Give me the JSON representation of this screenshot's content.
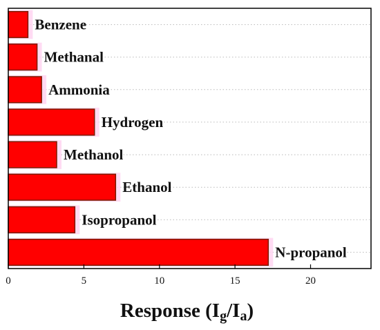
{
  "chart_data": {
    "type": "bar",
    "orientation": "horizontal",
    "categories": [
      "Benzene",
      "Methanal",
      "Ammonia",
      "Hydrogen",
      "Methanol",
      "Ethanol",
      "Isopropanol",
      "N-propanol"
    ],
    "values": [
      1.3,
      1.9,
      2.2,
      5.7,
      3.2,
      7.1,
      4.4,
      17.2
    ],
    "xlabel": {
      "main": "Response (I",
      "sub1": "g",
      "mid": "/I",
      "sub2": "a",
      "end": ")"
    },
    "xlim": [
      0,
      24
    ],
    "xticks": [
      "0",
      "5",
      "10",
      "15",
      "20"
    ],
    "grid": "horizontal dotted",
    "bar_color": "#ff0000",
    "bar_edge_color": "#7a1a00"
  }
}
